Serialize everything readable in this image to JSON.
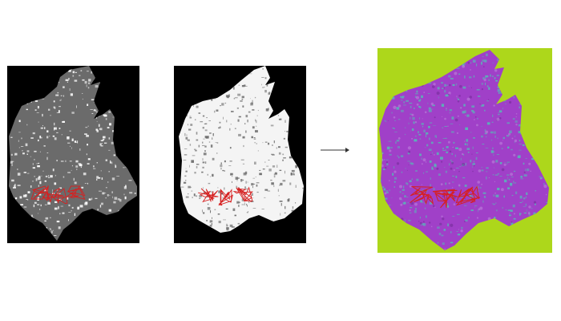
{
  "figure": {
    "panels": [
      {
        "id": "map-grey",
        "background": "#000000",
        "land_color": "#6b6b6b",
        "gap_color": "#ffffff",
        "boundary_color": "#d62020"
      },
      {
        "id": "map-white",
        "background": "#000000",
        "land_color": "#f4f4f4",
        "gap_color": "#6f6f6f",
        "boundary_color": "#d62020"
      },
      {
        "id": "map-classified",
        "background": "#add71b",
        "land_color": "#a040c8",
        "gap_color": "#5cb0b8",
        "boundary_color": "#d62020"
      }
    ],
    "arrow": {
      "direction": "right",
      "color": "#333333"
    }
  }
}
